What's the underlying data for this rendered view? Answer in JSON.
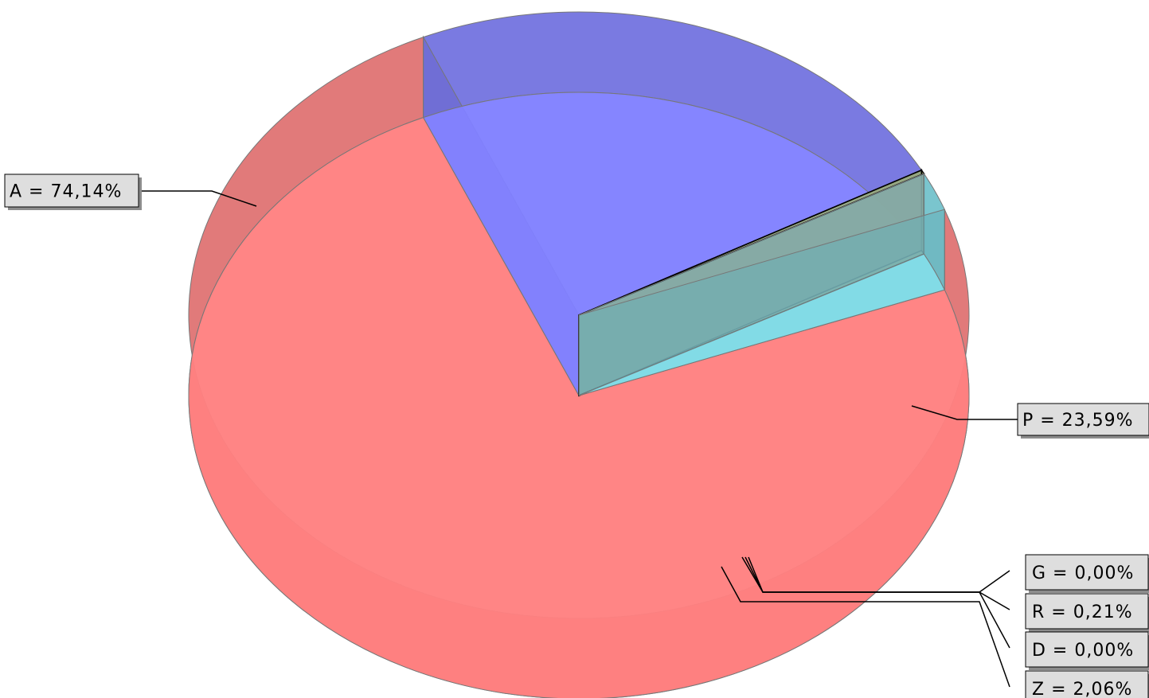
{
  "chart_data": {
    "type": "pie",
    "style": "3d",
    "slices": [
      {
        "name": "A",
        "value": 74.14,
        "label": "A = 74,14%",
        "color": "#ff8080"
      },
      {
        "name": "P",
        "value": 23.59,
        "label": "P = 23,59%",
        "color": "#8080ff"
      },
      {
        "name": "G",
        "value": 0.0,
        "label": "G = 0,00%",
        "color": "#9ed6a0"
      },
      {
        "name": "R",
        "value": 0.21,
        "label": "R = 0,21%",
        "color": "#e6e680"
      },
      {
        "name": "D",
        "value": 0.0,
        "label": "D = 0,00%",
        "color": "#c8c8c8"
      },
      {
        "name": "Z",
        "value": 2.06,
        "label": "Z = 2,06%",
        "color": "#80dde8"
      }
    ],
    "title": "",
    "legend": "none"
  }
}
